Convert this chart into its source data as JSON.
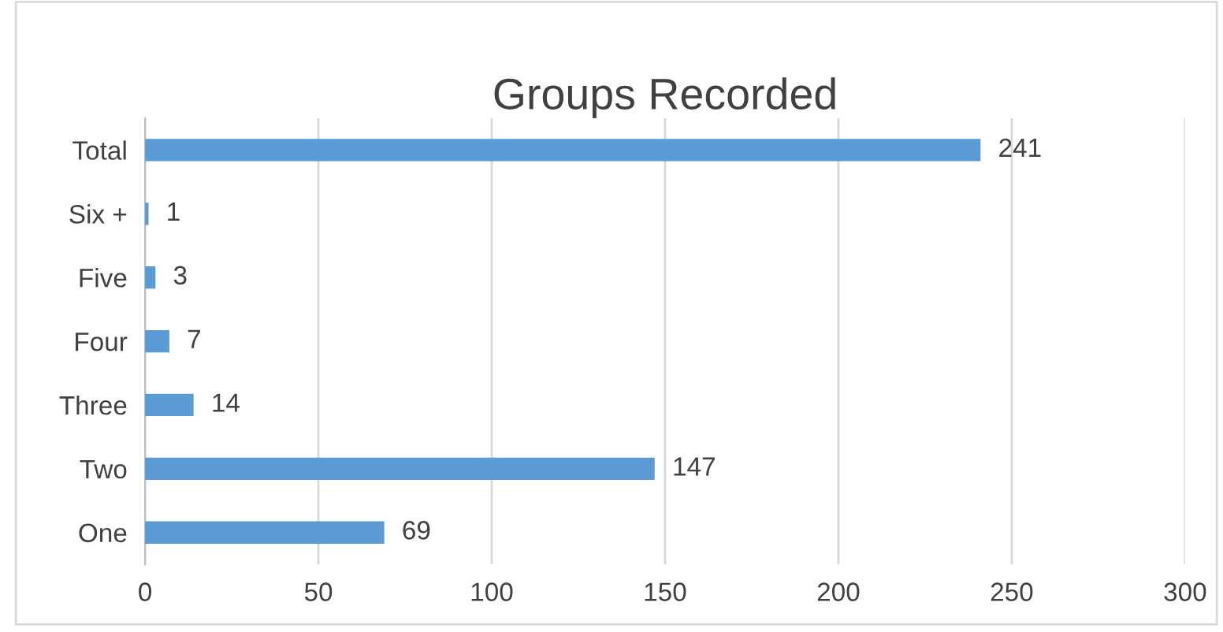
{
  "chart_data": {
    "type": "bar",
    "orientation": "horizontal",
    "title": "Groups Recorded",
    "categories": [
      "Total",
      "Six +",
      "Five",
      "Four",
      "Three",
      "Two",
      "One"
    ],
    "values": [
      241,
      1,
      3,
      7,
      14,
      147,
      69
    ],
    "color": "#5b9bd5",
    "xlim": [
      0,
      300
    ],
    "xticks": [
      0,
      50,
      100,
      150,
      200,
      250,
      300
    ],
    "grid": "x",
    "data_labels": true
  }
}
